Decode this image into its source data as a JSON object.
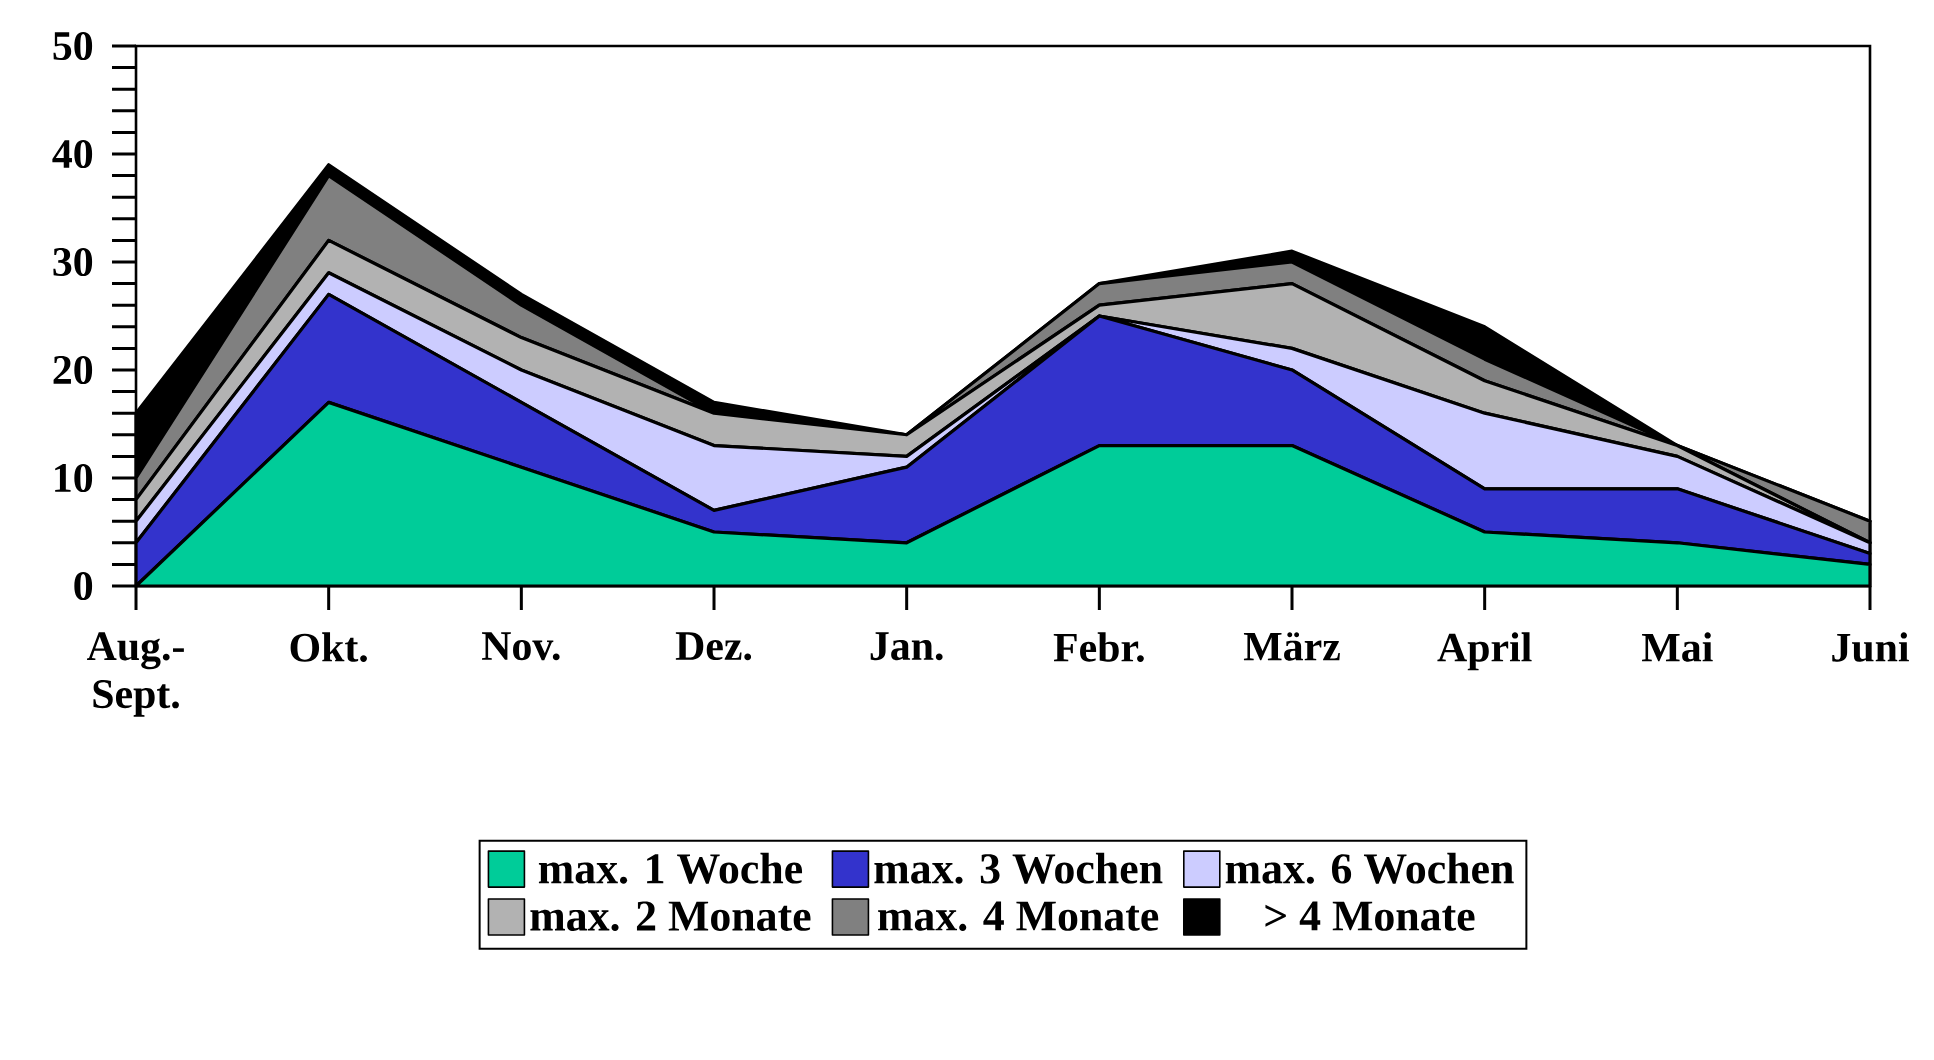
{
  "chart_data": {
    "type": "area",
    "stacked": true,
    "legend": "bottom",
    "categories": [
      "Aug.- Sept.",
      "Okt.",
      "Nov.",
      "Dez.",
      "Jan.",
      "Febr.",
      "März",
      "April",
      "Mai",
      "Juni"
    ],
    "ylim": [
      0,
      50
    ],
    "yticks": [
      0,
      {
        "value": 2,
        "label": null
      },
      {
        "value": 4,
        "label": null
      },
      {
        "value": 6,
        "label": null
      },
      {
        "value": 8,
        "label": null
      },
      10,
      {
        "value": 12,
        "label": null
      },
      {
        "value": 14,
        "label": null
      },
      {
        "value": 16,
        "label": null
      },
      {
        "value": 18,
        "label": null
      },
      20,
      {
        "value": 22,
        "label": null
      },
      {
        "value": 24,
        "label": null
      },
      {
        "value": 26,
        "label": null
      },
      {
        "value": 28,
        "label": null
      },
      30,
      {
        "value": 32,
        "label": null
      },
      {
        "value": 34,
        "label": null
      },
      {
        "value": 36,
        "label": null
      },
      {
        "value": 38,
        "label": null
      },
      40,
      {
        "value": 42,
        "label": null
      },
      {
        "value": 44,
        "label": null
      },
      {
        "value": 46,
        "label": null
      },
      {
        "value": 48,
        "label": null
      },
      50
    ],
    "series": [
      {
        "name": "max. 1 Woche",
        "color": "#00cc99",
        "values": [
          0,
          17,
          11,
          5,
          4,
          13,
          13,
          5,
          4,
          2
        ]
      },
      {
        "name": "max. 3 Wochen",
        "color": "#3333cc",
        "values": [
          4,
          10,
          6,
          2,
          7,
          12,
          7,
          4,
          5,
          1
        ]
      },
      {
        "name": "max. 6 Wochen",
        "color": "#ccccff",
        "values": [
          2,
          2,
          3,
          6,
          1,
          0,
          2,
          7,
          3,
          1
        ]
      },
      {
        "name": "max. 2 Monate",
        "color": "#b2b2b2",
        "values": [
          2,
          3,
          3,
          3,
          2,
          1,
          6,
          3,
          1,
          0
        ]
      },
      {
        "name": "max. 4 Monate",
        "color": "#808080",
        "values": [
          2,
          6,
          3,
          0,
          0,
          2,
          2,
          2,
          0,
          2
        ]
      },
      {
        "name": "> 4 Monate",
        "color": "#000000",
        "values": [
          6,
          1,
          1,
          1,
          0,
          0,
          1,
          3,
          0,
          0
        ]
      }
    ]
  }
}
